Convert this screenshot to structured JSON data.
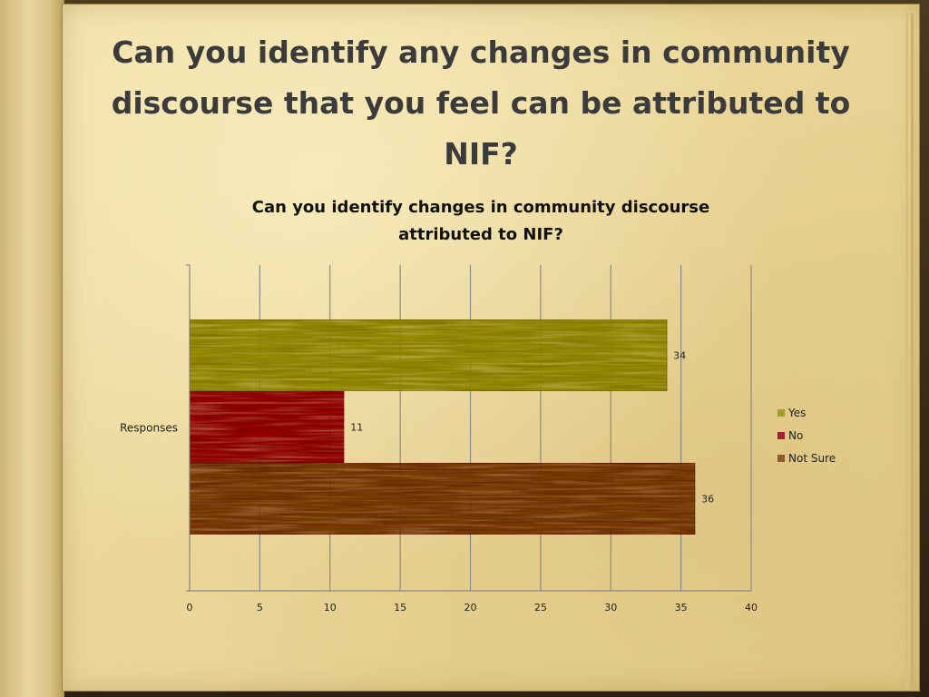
{
  "slide": {
    "title": "Can you identify any changes in community discourse that you feel can be attributed to NIF?"
  },
  "colors": {
    "Yes": "#a69b2e",
    "No": "#a51e32",
    "Not Sure": "#8c5a2a"
  },
  "chart_data": {
    "type": "bar",
    "orientation": "horizontal",
    "title": "Can you identify changes in community discourse attributed to NIF?",
    "categories": [
      "Responses"
    ],
    "series": [
      {
        "name": "Yes",
        "values": [
          34
        ]
      },
      {
        "name": "No",
        "values": [
          11
        ]
      },
      {
        "name": "Not Sure",
        "values": [
          36
        ]
      }
    ],
    "xlim": [
      0,
      40
    ],
    "xticks": [
      0,
      5,
      10,
      15,
      20,
      25,
      30,
      35,
      40
    ],
    "grid": "vertical",
    "legend": "right"
  }
}
